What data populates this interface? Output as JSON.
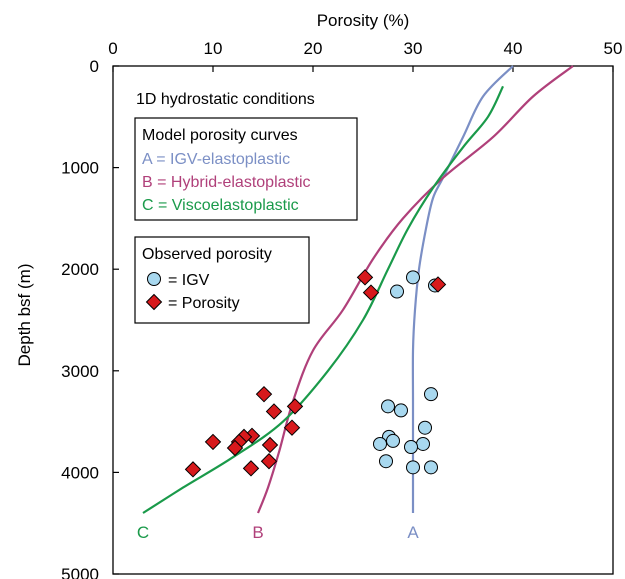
{
  "chart_data": {
    "type": "scatter",
    "xlabel": "Porosity (%)",
    "ylabel": "Depth bsf (m)",
    "xlim": [
      0,
      50
    ],
    "ylim": [
      5000,
      0
    ],
    "x_ticks": [
      0,
      10,
      20,
      30,
      40,
      50
    ],
    "y_ticks": [
      0,
      1000,
      2000,
      3000,
      4000,
      5000
    ],
    "x_axis_position": "top",
    "grid": false,
    "annotation": "1D hydrostatic conditions",
    "legend_model": {
      "title": "Model porosity curves",
      "entries": [
        {
          "key": "A",
          "text": "A = IGV-elastoplastic",
          "color": "#7b8fc5"
        },
        {
          "key": "B",
          "text": "B = Hybrid-elastoplastic",
          "color": "#b0407a"
        },
        {
          "key": "C",
          "text": "C = Viscoelastoplastic",
          "color": "#1a9a4a"
        }
      ]
    },
    "legend_observed": {
      "title": "Observed porosity",
      "entries": [
        {
          "marker": "circle",
          "text": "= IGV",
          "color": "#a8d8ef"
        },
        {
          "marker": "diamond",
          "text": "= Porosity",
          "color": "#d7191c"
        }
      ]
    },
    "curves": [
      {
        "key": "A",
        "label": "A",
        "color": "#7b8fc5",
        "points": [
          [
            40,
            0
          ],
          [
            37,
            300
          ],
          [
            35,
            700
          ],
          [
            33,
            1100
          ],
          [
            32,
            1300
          ],
          [
            31.3,
            1600
          ],
          [
            30.6,
            2000
          ],
          [
            30.2,
            2400
          ],
          [
            30,
            2800
          ],
          [
            30,
            3300
          ],
          [
            30,
            3800
          ],
          [
            30,
            4400
          ]
        ]
      },
      {
        "key": "B",
        "label": "B",
        "color": "#b0407a",
        "points": [
          [
            46,
            0
          ],
          [
            42,
            300
          ],
          [
            38,
            700
          ],
          [
            33,
            1100
          ],
          [
            29,
            1500
          ],
          [
            26,
            1900
          ],
          [
            23,
            2400
          ],
          [
            20,
            2800
          ],
          [
            18,
            3300
          ],
          [
            16.6,
            3800
          ],
          [
            15.5,
            4150
          ],
          [
            14.5,
            4400
          ]
        ]
      },
      {
        "key": "C",
        "label": "C",
        "color": "#1a9a4a",
        "points": [
          [
            39,
            200
          ],
          [
            37.5,
            500
          ],
          [
            35,
            800
          ],
          [
            32,
            1200
          ],
          [
            29.5,
            1600
          ],
          [
            27.5,
            2000
          ],
          [
            25,
            2500
          ],
          [
            21.5,
            3000
          ],
          [
            17,
            3500
          ],
          [
            12,
            3850
          ],
          [
            7,
            4150
          ],
          [
            3,
            4400
          ]
        ]
      }
    ],
    "series": [
      {
        "name": "IGV",
        "marker": "circle",
        "color": "#a8d8ef",
        "points": [
          [
            30,
            2080
          ],
          [
            28.4,
            2220
          ],
          [
            32.2,
            2160
          ],
          [
            31.8,
            3230
          ],
          [
            27.5,
            3350
          ],
          [
            28.8,
            3390
          ],
          [
            31.2,
            3560
          ],
          [
            27.6,
            3650
          ],
          [
            28,
            3690
          ],
          [
            26.7,
            3720
          ],
          [
            31,
            3720
          ],
          [
            29.8,
            3750
          ],
          [
            27.3,
            3890
          ],
          [
            30,
            3950
          ],
          [
            31.8,
            3950
          ]
        ]
      },
      {
        "name": "Porosity",
        "marker": "diamond",
        "color": "#d7191c",
        "points": [
          [
            25.2,
            2080
          ],
          [
            25.8,
            2230
          ],
          [
            32.5,
            2150
          ],
          [
            15.1,
            3230
          ],
          [
            18.2,
            3350
          ],
          [
            16.1,
            3400
          ],
          [
            17.9,
            3560
          ],
          [
            13.9,
            3640
          ],
          [
            13.1,
            3650
          ],
          [
            12.6,
            3700
          ],
          [
            10,
            3700
          ],
          [
            12.2,
            3760
          ],
          [
            15.7,
            3730
          ],
          [
            15.6,
            3890
          ],
          [
            13.8,
            3960
          ],
          [
            8,
            3970
          ]
        ]
      }
    ]
  }
}
